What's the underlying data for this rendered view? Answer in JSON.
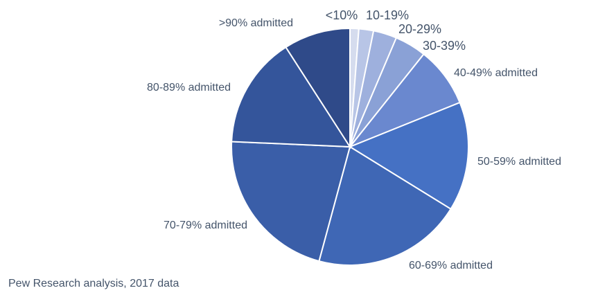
{
  "chart_data": {
    "type": "pie",
    "title": "",
    "categories": [
      "<10%",
      "10-19%",
      "20-29%",
      "30-39%",
      "40-49% admitted",
      "50-59% admitted",
      "60-69% admitted",
      "70-79% admitted",
      "80-89% admitted",
      ">90% admitted"
    ],
    "values": [
      1.2,
      2.0,
      3.2,
      4.3,
      8.2,
      14.9,
      20.4,
      21.5,
      15.2,
      9.1
    ],
    "colors": [
      "#d5dcee",
      "#b8c5e6",
      "#9eb0dd",
      "#8aa1d6",
      "#6a88cf",
      "#4571c4",
      "#3f67b5",
      "#3a5ea8",
      "#34559b",
      "#2f4a89"
    ],
    "legend": "none",
    "start_angle_deg": 0,
    "direction": "clockwise"
  },
  "source_note": "Pew Research analysis, 2017 data"
}
